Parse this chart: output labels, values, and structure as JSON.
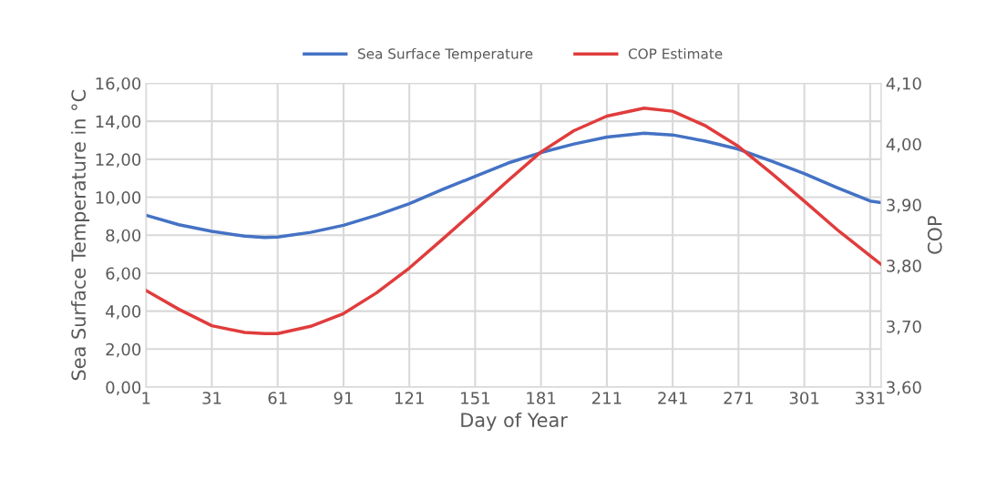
{
  "chart_data": {
    "type": "line",
    "xlabel": "Day of Year",
    "ylabel": "Sea Surface Temperature in °C",
    "y2label": "COP",
    "x": [
      1,
      16,
      31,
      46,
      55,
      61,
      76,
      91,
      106,
      121,
      136,
      151,
      166,
      181,
      196,
      211,
      228,
      241,
      256,
      271,
      286,
      301,
      316,
      331,
      336
    ],
    "series": [
      {
        "name": "Sea Surface Temperature",
        "color": "#4472c4",
        "values": [
          9.05,
          8.55,
          8.2,
          7.95,
          7.88,
          7.9,
          8.15,
          8.52,
          9.05,
          9.66,
          10.4,
          11.1,
          11.8,
          12.35,
          12.8,
          13.17,
          13.37,
          13.28,
          12.95,
          12.53,
          11.9,
          11.24,
          10.5,
          9.8,
          9.72
        ]
      },
      {
        "name": "COP Estimate",
        "color": "#e03c3c",
        "axis": "y2",
        "values": [
          3.759,
          3.728,
          3.701,
          3.69,
          3.688,
          3.688,
          3.7,
          3.721,
          3.755,
          3.796,
          3.843,
          3.891,
          3.94,
          3.987,
          4.022,
          4.046,
          4.059,
          4.054,
          4.03,
          3.996,
          3.952,
          3.906,
          3.859,
          3.816,
          3.802
        ]
      }
    ],
    "xlim": [
      1,
      336
    ],
    "xticks": [
      1,
      31,
      61,
      91,
      121,
      151,
      181,
      211,
      241,
      271,
      301,
      331
    ],
    "ylim": [
      0,
      16
    ],
    "yticks": [
      {
        "value": 0,
        "label": "0,00"
      },
      {
        "value": 2,
        "label": "2,00"
      },
      {
        "value": 4,
        "label": "4,00"
      },
      {
        "value": 6,
        "label": "6,00"
      },
      {
        "value": 8,
        "label": "8,00"
      },
      {
        "value": 10,
        "label": "10,00"
      },
      {
        "value": 12,
        "label": "12,00"
      },
      {
        "value": 14,
        "label": "14,00"
      },
      {
        "value": 16,
        "label": "16,00"
      }
    ],
    "y2lim": [
      3.6,
      4.1
    ],
    "y2ticks": [
      {
        "value": 3.6,
        "label": "3,60"
      },
      {
        "value": 3.7,
        "label": "3,70"
      },
      {
        "value": 3.8,
        "label": "3,80"
      },
      {
        "value": 3.9,
        "label": "3,90"
      },
      {
        "value": 4.0,
        "label": "4,00"
      },
      {
        "value": 4.1,
        "label": "4,10"
      }
    ],
    "grid": true,
    "legend": "top",
    "marker": "none",
    "line_style": "solid"
  }
}
